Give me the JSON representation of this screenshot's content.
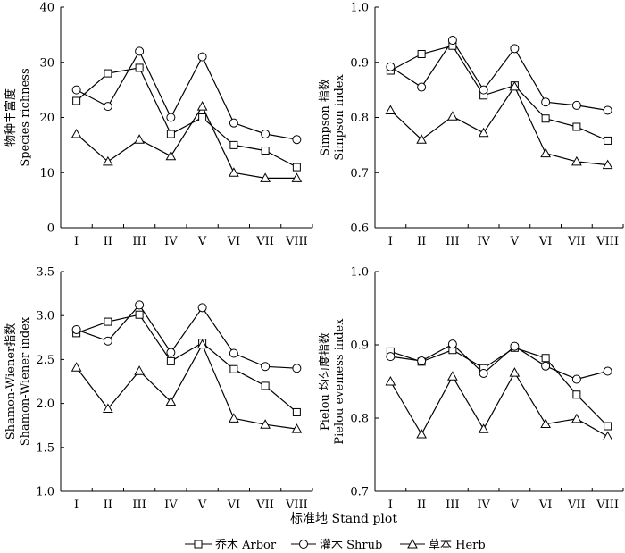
{
  "chart_data": {
    "type": "line",
    "x_label": "标准地 Stand plot",
    "categories": [
      "I",
      "II",
      "III",
      "IV",
      "V",
      "VI",
      "VII",
      "VIII"
    ],
    "legend": [
      {
        "key": "arbor",
        "label": "乔木 Arbor",
        "marker": "square"
      },
      {
        "key": "shrub",
        "label": "灌木 Shrub",
        "marker": "circle"
      },
      {
        "key": "herb",
        "label": "草本 Herb",
        "marker": "triangle"
      }
    ],
    "panels": [
      {
        "id": "species-richness",
        "ylabel_cn": "物种丰富度",
        "ylabel_en": "Species richness",
        "ylim": [
          0,
          40
        ],
        "yticks": [
          0,
          10,
          20,
          30,
          40
        ],
        "tick_labels": [
          "0",
          "10",
          "20",
          "30",
          "40"
        ],
        "series": [
          {
            "key": "arbor",
            "values": [
              23,
              28,
              29,
              17,
              20,
              15,
              14,
              11
            ]
          },
          {
            "key": "shrub",
            "values": [
              25,
              22,
              32,
              20,
              31,
              19,
              17,
              16
            ]
          },
          {
            "key": "herb",
            "values": [
              17,
              12,
              16,
              13,
              22,
              10,
              9,
              9
            ]
          }
        ]
      },
      {
        "id": "simpson",
        "ylabel_cn": "Simpson 指数",
        "ylabel_en": "Simpson index",
        "ylim": [
          0.6,
          1.0
        ],
        "yticks": [
          0.6,
          0.7,
          0.8,
          0.9,
          1.0
        ],
        "tick_labels": [
          "0.6",
          "0.7",
          "0.8",
          "0.9",
          "1.0"
        ],
        "series": [
          {
            "key": "arbor",
            "values": [
              0.885,
              0.915,
              0.93,
              0.84,
              0.858,
              0.798,
              0.783,
              0.758
            ]
          },
          {
            "key": "shrub",
            "values": [
              0.892,
              0.855,
              0.94,
              0.85,
              0.925,
              0.828,
              0.822,
              0.813
            ]
          },
          {
            "key": "herb",
            "values": [
              0.813,
              0.76,
              0.802,
              0.772,
              0.856,
              0.735,
              0.72,
              0.714
            ]
          }
        ]
      },
      {
        "id": "shannon-wiener",
        "ylabel_cn": "Shamon-Wiener指数",
        "ylabel_en": "Shamon-Wiener index",
        "ylim": [
          1.0,
          3.5
        ],
        "yticks": [
          1.0,
          1.5,
          2.0,
          2.5,
          3.0,
          3.5
        ],
        "tick_labels": [
          "1.0",
          "1.5",
          "2.0",
          "2.5",
          "3.0",
          "3.5"
        ],
        "series": [
          {
            "key": "arbor",
            "values": [
              2.8,
              2.93,
              3.01,
              2.48,
              2.69,
              2.39,
              2.2,
              1.9
            ]
          },
          {
            "key": "shrub",
            "values": [
              2.84,
              2.71,
              3.12,
              2.58,
              3.09,
              2.57,
              2.42,
              2.4
            ]
          },
          {
            "key": "herb",
            "values": [
              2.41,
              1.94,
              2.37,
              2.02,
              2.67,
              1.83,
              1.76,
              1.71
            ]
          }
        ]
      },
      {
        "id": "pielou",
        "ylabel_cn": "Pielou 均匀度指数",
        "ylabel_en": "Pielou evemess index",
        "ylim": [
          0.7,
          1.0
        ],
        "yticks": [
          0.7,
          0.8,
          0.9,
          1.0
        ],
        "tick_labels": [
          "0.7",
          "0.8",
          "0.9",
          "1.0"
        ],
        "series": [
          {
            "key": "arbor",
            "values": [
              0.891,
              0.877,
              0.893,
              0.868,
              0.896,
              0.882,
              0.832,
              0.789
            ]
          },
          {
            "key": "shrub",
            "values": [
              0.884,
              0.878,
              0.901,
              0.861,
              0.898,
              0.871,
              0.853,
              0.864
            ]
          },
          {
            "key": "herb",
            "values": [
              0.85,
              0.778,
              0.857,
              0.785,
              0.862,
              0.792,
              0.799,
              0.775
            ]
          }
        ]
      }
    ]
  }
}
